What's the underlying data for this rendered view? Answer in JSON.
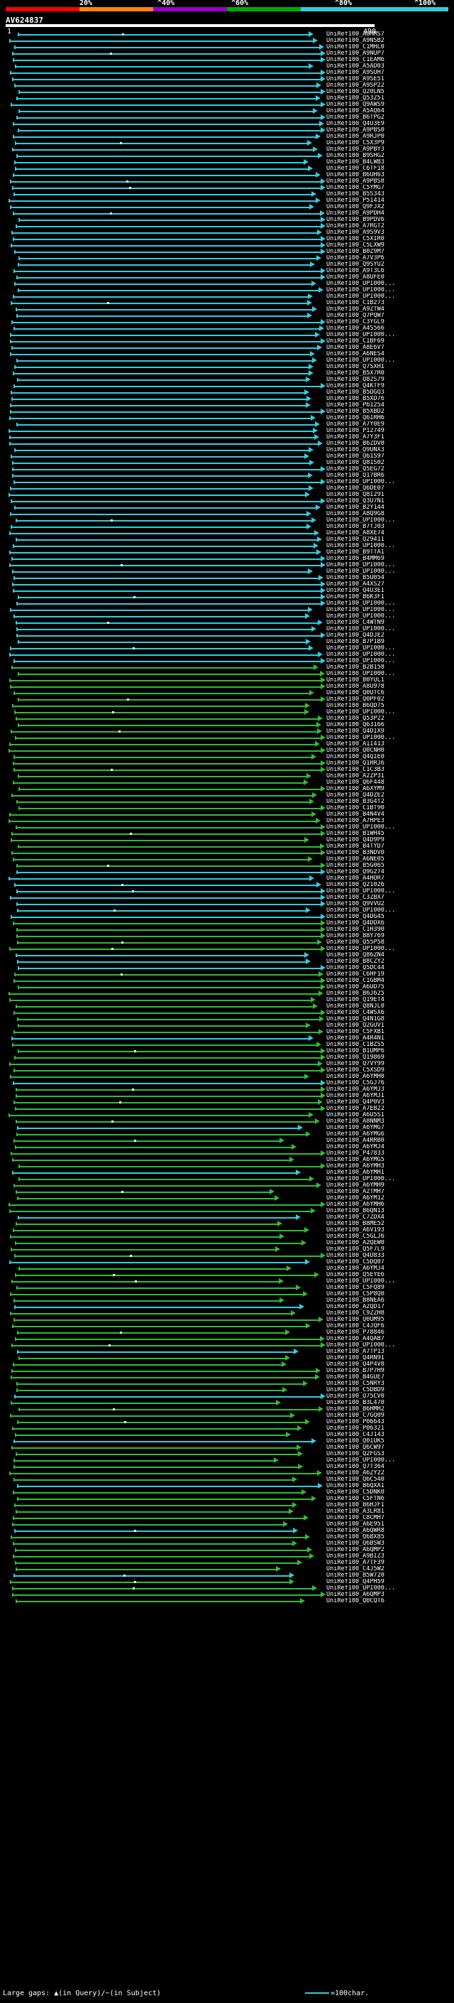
{
  "scale": {
    "labels": [
      "20%",
      "^40%",
      "^60%",
      "^80%",
      "^100%"
    ],
    "colors": [
      "#ff0000",
      "#ff8800",
      "#9900cc",
      "#00aa00",
      "#33ccdd"
    ]
  },
  "query": {
    "title": "AV624837",
    "start_label": "1",
    "end_label": "490"
  },
  "colors": {
    "cyan": "#33ccdd",
    "green": "#33bb33",
    "gap": "#ffffff"
  },
  "legend": {
    "text": "Large gaps: ▲(in Query)/~(in Subject)",
    "key_text": "=100char."
  },
  "hits": [
    "UniRef100_A8MMS7",
    "UniRef100_A9NSB2",
    "UniRef100_C1MHL0",
    "UniRef100_A9NUP7",
    "UniRef100_C1EAM6",
    "UniRef100_A5AD03",
    "UniRef100_A9SUH7",
    "UniRef100_A9SE51",
    "UniRef100_A9SP22",
    "UniRef100_Q20LN5",
    "UniRef100_Q53Z51",
    "UniRef100_Q9AWS9",
    "UniRef100_A5AQ64",
    "UniRef100_B6TPG2",
    "UniRef100_Q4U3E9",
    "UniRef100_A9PBS0",
    "UniRef100_A9RJP0",
    "UniRef100_C5X3P9",
    "UniRef100_A9PBY3",
    "UniRef100_B9SHG2",
    "UniRef100_B4LWB3",
    "UniRef100_C6TF18",
    "UniRef100_B6UH63",
    "UniRef100_A9PBS8",
    "UniRef100_C5YMG7",
    "UniRef100_B5S343",
    "UniRef100_P51414",
    "UniRef100_Q9FJX2",
    "UniRef100_A9PDH4",
    "UniRef100_B9PDV6",
    "UniRef100_A7RGT2",
    "UniRef100_A9S9V3",
    "UniRef100_C5XIR0",
    "UniRef100_C5LXW9",
    "UniRef100_B0Z9M7",
    "UniRef100_A7V3P6",
    "UniRef100_Q9SYU2",
    "UniRef100_A9T3L6",
    "UniRef100_A8UFE0",
    "UniRef100_UPI000...",
    "UniRef100_UPI000...",
    "UniRef100_UPI000...",
    "UniRef100_C1B273",
    "UniRef100_A9ZTW4",
    "UniRef100_Q7PQW7",
    "UniRef100_C3YGL9",
    "UniRef100_A4S566",
    "UniRef100_UPI000...",
    "UniRef100_C1BF69",
    "UniRef100_A8E6V7",
    "UniRef100_A6NES4",
    "UniRef100_UPI000...",
    "UniRef100_Q7SXH1",
    "UniRef100_B5X7R0",
    "UniRef100_Q82S79",
    "UniRef100_Q4KTF9",
    "UniRef100_B5DGQ3",
    "UniRef100_B5XD76",
    "UniRef100_P61254",
    "UniRef100_B5XBD2",
    "UniRef100_Q6IRH6",
    "UniRef100_A7Y0E9",
    "UniRef100_P12749",
    "UniRef100_A7Y3F1",
    "UniRef100_B6ZDV0",
    "UniRef100_Q9UNX3",
    "UniRef100_Q61S97",
    "UniRef100_Q81S02",
    "UniRef100_Q5EG72",
    "UniRef100_Q17BR6",
    "UniRef100_UPI000...",
    "UniRef100_Q6DE07",
    "UniRef100_Q8I291",
    "UniRef100_Q3U7N1",
    "UniRef100_B2Y144",
    "UniRef100_A8Q9G8",
    "UniRef100_UPI000...",
    "UniRef100_B7TJ03",
    "UniRef100_A8XE74",
    "UniRef100_Q29411",
    "UniRef100_UPI000...",
    "UniRef100_B9TTA1",
    "UniRef100_B4MM69",
    "UniRef100_UPI000...",
    "UniRef100_UPI000...",
    "UniRef100_B5U054",
    "UniRef100_A4XS27",
    "UniRef100_Q4U3E1",
    "UniRef100_B6K3F1",
    "UniRef100_UPI000...",
    "UniRef100_UPI000...",
    "UniRef100_UPI000...",
    "UniRef100_C4WTN9",
    "UniRef100_UPI000...",
    "UniRef100_Q4DJE2",
    "UniRef100_B7P1B9",
    "UniRef100_UPI000...",
    "UniRef100_UPI000...",
    "UniRef100_UPI000...",
    "UniRef100_B2B158",
    "UniRef100_UPI000...",
    "UniRef100_B0YUL1",
    "UniRef100_A8U978",
    "UniRef100_Q0UTC6",
    "UniRef100_Q0PF02",
    "UniRef100_B6QD75",
    "UniRef100_UPI000...",
    "UniRef100_Q53P22",
    "UniRef100_Q63166",
    "UniRef100_Q4DIX9",
    "UniRef100_UPI000...",
    "UniRef100_A1I413",
    "UniRef100_Q0CNH0",
    "UniRef100_Q4QIE0",
    "UniRef100_Q1HRJ6",
    "UniRef100_C1C3B3",
    "UniRef100_A2ZP31",
    "UniRef100_Q6F448",
    "UniRef100_A6XYM9",
    "UniRef100_Q4DZE2",
    "UniRef100_B3G4T2",
    "UniRef100_C1BT90",
    "UniRef100_B4N4V4",
    "UniRef100_A7HPE3",
    "UniRef100_UPI000...",
    "UniRef100_B1WH45",
    "UniRef100_Q4D9P9",
    "UniRef100_B4TYD7",
    "UniRef100_B3NDV0",
    "UniRef100_A6NE05",
    "UniRef100_B5G065",
    "UniRef100_Q9G274",
    "UniRef100_A4HOR7",
    "UniRef100_Q21026",
    "UniRef100_UPI000...",
    "UniRef100_C3ZBX7",
    "UniRef100_Q9VVU2",
    "UniRef100_UPI000...",
    "UniRef100_Q4DG45",
    "UniRef100_Q4DDX6",
    "UniRef100_C1H390",
    "UniRef100_B8Y769",
    "UniRef100_Q55P58",
    "UniRef100_UPI000...",
    "UniRef100_Q86ZN4",
    "UniRef100_B8CZY2",
    "UniRef100_Q5DC44",
    "UniRef100_C6HF19",
    "UniRef100_C1GBM4",
    "UniRef100_A6UD75",
    "UniRef100_B6J625",
    "UniRef100_Q19ET4",
    "UniRef100_Q8NJL0",
    "UniRef100_C4WSX6",
    "UniRef100_Q4N1G8",
    "UniRef100_Q2GUV1",
    "UniRef100_C5FXB1",
    "UniRef100_A4R4N1",
    "UniRef100_C1BZS5",
    "UniRef100_B1UMP6",
    "UniRef100_Q19869",
    "UniRef100_Q7VY99",
    "UniRef100_C5XSD9",
    "UniRef100_A6YMH0",
    "UniRef100_C5GJ76",
    "UniRef100_A6YMJ3",
    "UniRef100_A6YMJ1",
    "UniRef100_Q4P0V3",
    "UniRef100_A7EB22",
    "UniRef100_A6U5S1",
    "UniRef100_A8NNM3",
    "UniRef100_A6YMG7",
    "UniRef100_A6YMG6",
    "UniRef100_A4RRB0",
    "UniRef100_A6YMJ4",
    "UniRef100_P47833",
    "UniRef100_A6YMG5",
    "UniRef100_A6YMH3",
    "UniRef100_A6YMH1",
    "UniRef100_UPI000...",
    "UniRef100_A6YMH9",
    "UniRef100_A2TMH7",
    "UniRef100_A6YM12",
    "UniRef100_A6YMH6",
    "UniRef100_B6QN13",
    "UniRef100_C7ZDX4",
    "UniRef100_B8ME52",
    "UniRef100_A6V193",
    "UniRef100_C5GLJ6",
    "UniRef100_A2QEW0",
    "UniRef100_Q5F7L9",
    "UniRef100_Q4U833",
    "UniRef100_C5DQ07",
    "UniRef100_A6YMJ4",
    "UniRef100_Q5EYE6",
    "UniRef100_UPI000...",
    "UniRef100_C5FQ89",
    "UniRef100_C5P8Q0",
    "UniRef100_B8NEA6",
    "UniRef100_A2QD17",
    "UniRef100_C9ZZH8",
    "UniRef100_Q0UM95",
    "UniRef100_C4JQF6",
    "UniRef100_P78846",
    "UniRef100_A4QAB7",
    "UniRef100_UPI000...",
    "UniRef100_A7TP13",
    "UniRef100_Q4RN91",
    "UniRef100_Q4P4V8",
    "UniRef100_B7P7H9",
    "UniRef100_B4GUE7",
    "UniRef100_C5NRY3",
    "UniRef100_C5DBD9",
    "UniRef100_Q75CV0",
    "UniRef100_B3L470",
    "UniRef100_B6HMH2",
    "UniRef100_C7GQ09",
    "UniRef100_P06643",
    "UniRef100_P06321",
    "UniRef100_C4J143",
    "UniRef100_Q0IUK5",
    "UniRef100_Q6CW97",
    "UniRef100_Q2FGS3",
    "UniRef100_UPI000...",
    "UniRef100_Q7T364",
    "UniRef100_A6ZY22",
    "UniRef100_Q6C540",
    "UniRef100_B6QXA1",
    "UniRef100_C5DNK0",
    "UniRef100_C5FTN6",
    "UniRef100_B6HJF1",
    "UniRef100_A3LR81",
    "UniRef100_C8CMH7",
    "UniRef100_A6E951",
    "UniRef100_A6QWR8",
    "UniRef100_Q6BX85",
    "UniRef100_Q6BSW3",
    "UniRef100_A6QMP2",
    "UniRef100_A9BIZ3",
    "UniRef100_A7TF39",
    "UniRef100_C4J5W2",
    "UniRef100_B5W720",
    "UniRef100_Q4PH59",
    "UniRef100_UPI000...",
    "UniRef100_A6QMP3",
    "UniRef100_Q0CQT6"
  ]
}
